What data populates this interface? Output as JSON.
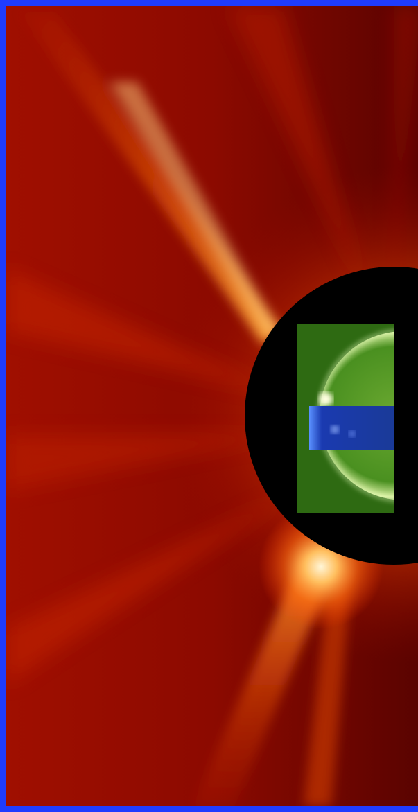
{
  "image": {
    "subject": "coronagraph-composite",
    "frame_color": "#1f3cff",
    "corona_colors": [
      "#7a0500",
      "#a81200",
      "#d84a00",
      "#ff9a20",
      "#fff0c0"
    ],
    "occulter_color": "#000000",
    "euv_green_color": "#3c8a1a",
    "euv_blue_color": "#1a3aa8"
  }
}
